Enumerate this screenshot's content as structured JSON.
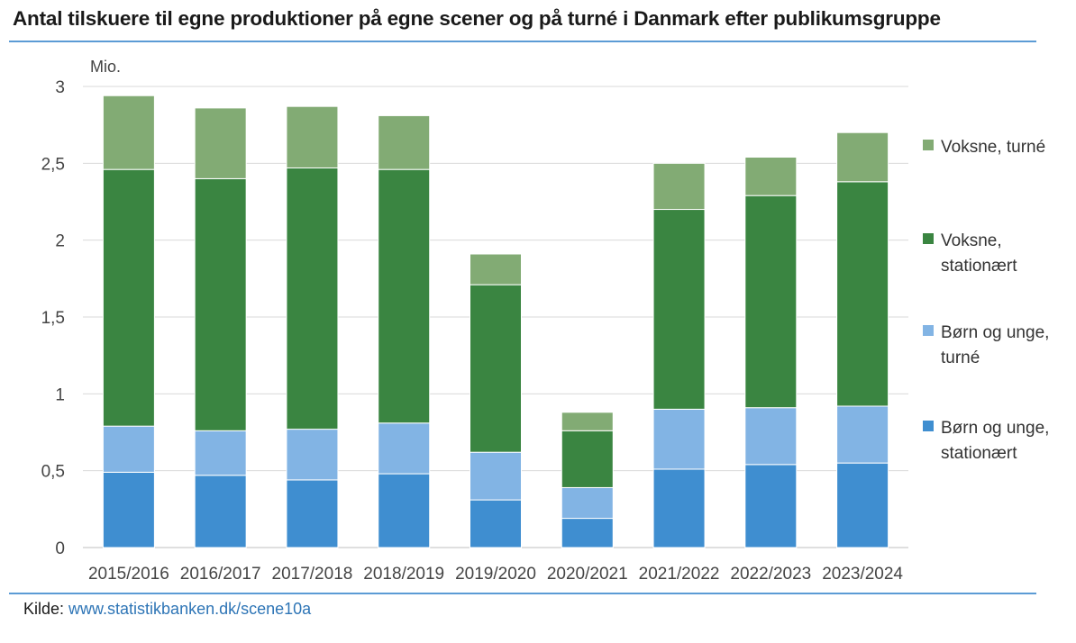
{
  "title": "Antal tilskuere til egne produktioner på egne scener og på turné i Danmark efter publikumsgruppe",
  "unit_label": "Mio.",
  "source": {
    "prefix": "Kilde: ",
    "link": "www.statistikbanken.dk/scene10a"
  },
  "chart_data": {
    "type": "bar",
    "stacked": true,
    "categories": [
      "2015/2016",
      "2016/2017",
      "2017/2018",
      "2018/2019",
      "2019/2020",
      "2020/2021",
      "2021/2022",
      "2022/2023",
      "2023/2024"
    ],
    "ylim": [
      0,
      3
    ],
    "yticks": [
      0,
      0.5,
      1,
      1.5,
      2,
      2.5,
      3
    ],
    "ytick_labels": [
      "0",
      "0,5",
      "1",
      "1,5",
      "2",
      "2,5",
      "3"
    ],
    "grid": true,
    "legend_position": "right",
    "series": [
      {
        "name": "Børn og unge, stationært",
        "color": "#3f8ed0",
        "values": [
          0.49,
          0.47,
          0.44,
          0.48,
          0.31,
          0.19,
          0.51,
          0.54,
          0.55
        ]
      },
      {
        "name": "Børn og unge, turné",
        "color": "#82b4e4",
        "values": [
          0.3,
          0.29,
          0.33,
          0.33,
          0.31,
          0.2,
          0.39,
          0.37,
          0.37
        ]
      },
      {
        "name": "Voksne, stationært",
        "color": "#3a8541",
        "values": [
          1.67,
          1.64,
          1.7,
          1.65,
          1.09,
          0.37,
          1.3,
          1.38,
          1.46
        ]
      },
      {
        "name": "Voksne, turné",
        "color": "#82ab74",
        "values": [
          0.48,
          0.46,
          0.4,
          0.35,
          0.2,
          0.12,
          0.3,
          0.25,
          0.32
        ]
      }
    ]
  }
}
